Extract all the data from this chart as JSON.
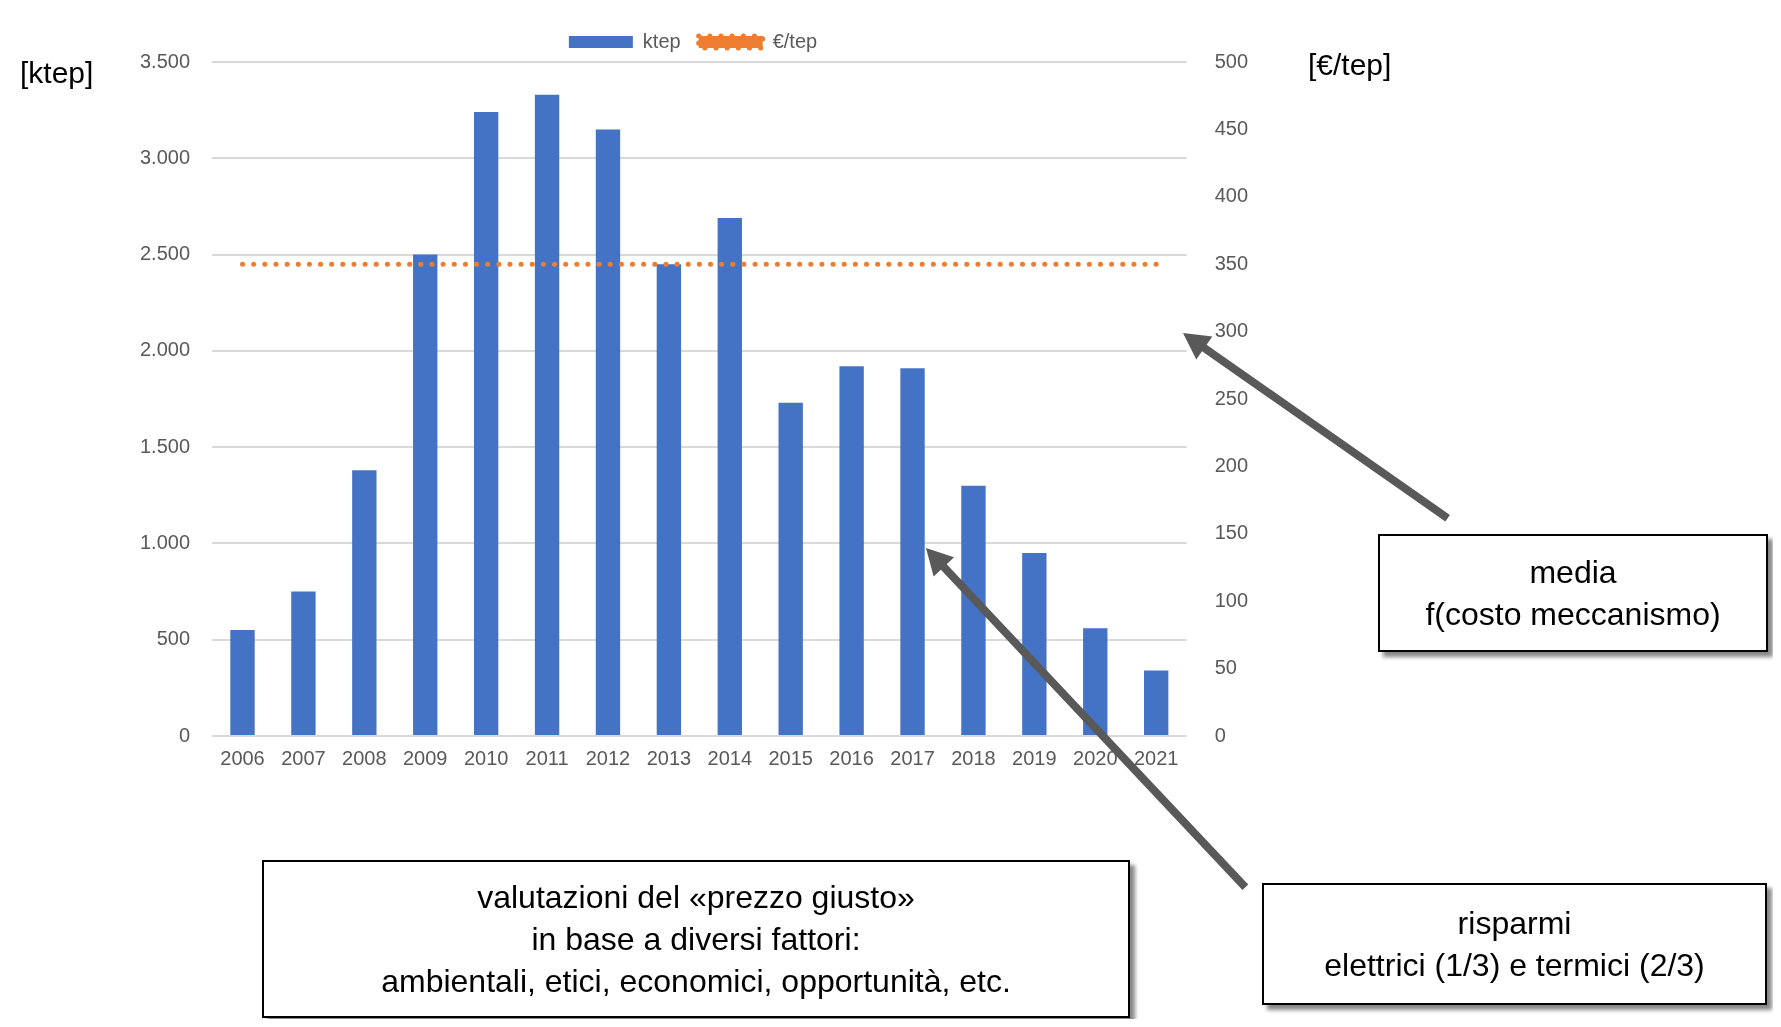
{
  "chart_data": {
    "type": "bar",
    "categories": [
      "2006",
      "2007",
      "2008",
      "2009",
      "2010",
      "2011",
      "2012",
      "2013",
      "2014",
      "2015",
      "2016",
      "2017",
      "2018",
      "2019",
      "2020",
      "2021"
    ],
    "ylabel": "[ktep]",
    "y2label": "[€/tep]",
    "series": [
      {
        "name": "ktep",
        "color": "#4472c4",
        "values": [
          550,
          750,
          1380,
          2500,
          3240,
          3330,
          3150,
          2450,
          2690,
          1730,
          1920,
          1910,
          1300,
          950,
          560,
          340
        ]
      },
      {
        "name": "€/tep",
        "type": "line",
        "axis": "y2",
        "color": "#ed7d31",
        "line_style": "dotted",
        "values": [
          350,
          350,
          350,
          350,
          350,
          350,
          350,
          350,
          350,
          350,
          350,
          350,
          350,
          350,
          350,
          350
        ]
      }
    ],
    "ylim": [
      0,
      3500
    ],
    "yticks": [
      {
        "value": 0,
        "label": "0"
      },
      {
        "value": 500,
        "label": "500"
      },
      {
        "value": 1000,
        "label": "1.000"
      },
      {
        "value": 1500,
        "label": "1.500"
      },
      {
        "value": 2000,
        "label": "2.000"
      },
      {
        "value": 2500,
        "label": "2.500"
      },
      {
        "value": 3000,
        "label": "3.000"
      },
      {
        "value": 3500,
        "label": "3.500"
      }
    ],
    "y2lim": [
      0,
      500
    ],
    "y2ticks": [
      0,
      50,
      100,
      150,
      200,
      250,
      300,
      350,
      400,
      450,
      500
    ],
    "grid": "y",
    "legend": "top",
    "marker": "none",
    "annotations": [
      "media\nf(costo meccanismo)",
      "risparmi\nelettrici (1/3) e termici (2/3)",
      "valutazioni del «prezzo giusto»\nin base a diversi fattori:\nambientali, etici, economici, opportunità, etc."
    ]
  }
}
